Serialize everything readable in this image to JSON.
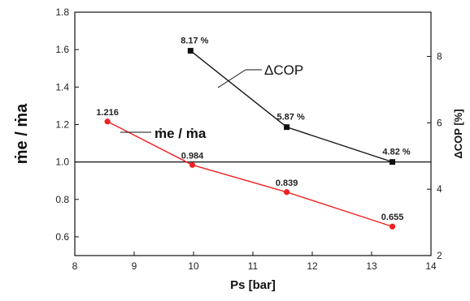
{
  "chart_data": {
    "type": "line",
    "xlabel": "Ps [bar]",
    "ylabel": "ṁe / ṁa",
    "y2label": "ΔCOP [%]",
    "xlim": [
      8,
      14
    ],
    "ylim": [
      0.5,
      1.8
    ],
    "y2lim": [
      2,
      9.333
    ],
    "xticks": [
      "8",
      "9",
      "10",
      "11",
      "12",
      "13",
      "14"
    ],
    "yticks": [
      "0.6",
      "0.8",
      "1.0",
      "1.2",
      "1.4",
      "1.6",
      "1.8"
    ],
    "y2ticks": [
      "2",
      "4",
      "6",
      "8"
    ],
    "reference_line": {
      "axis": "left",
      "y": 1.0
    },
    "grid": false,
    "series": [
      {
        "name": "ṁe / ṁa",
        "axis": "left",
        "color": "#ee2222",
        "marker": "circle",
        "x": [
          8.55,
          9.98,
          11.57,
          13.35
        ],
        "y": [
          1.216,
          0.984,
          0.839,
          0.655
        ],
        "labels": [
          "1.216",
          "0.984",
          "0.839",
          "0.655"
        ]
      },
      {
        "name": "ΔCOP",
        "axis": "right",
        "color": "#111111",
        "marker": "square",
        "x": [
          9.95,
          11.57,
          13.35
        ],
        "y": [
          8.17,
          5.87,
          4.82
        ],
        "labels": [
          "8.17 %",
          "5.87 %",
          "4.82 %"
        ]
      }
    ],
    "annotations": [
      "ΔCOP",
      "ṁe / ṁa"
    ]
  }
}
